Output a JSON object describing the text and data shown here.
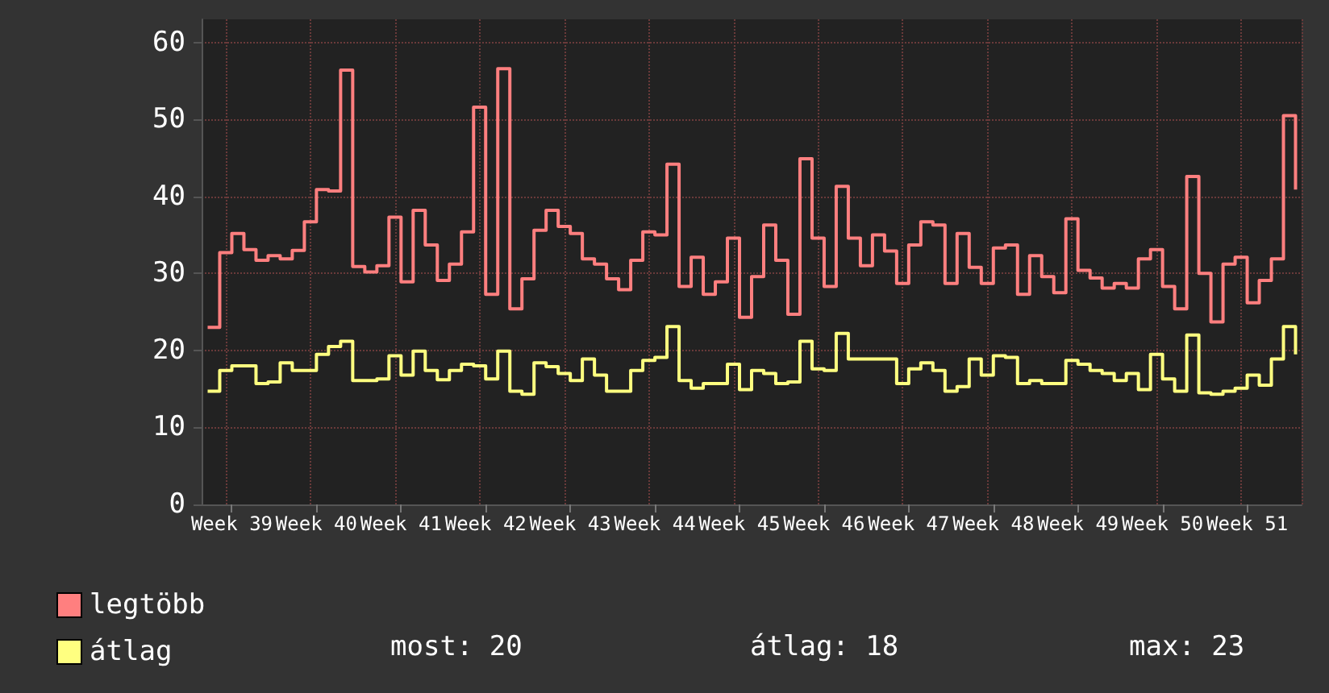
{
  "chart_data": {
    "type": "step",
    "ylim": [
      0,
      63
    ],
    "categories": [
      null,
      null,
      "Week 39",
      null,
      null,
      null,
      null,
      null,
      null,
      "Week 40",
      null,
      null,
      null,
      null,
      null,
      null,
      "Week 41",
      null,
      null,
      null,
      null,
      null,
      null,
      "Week 42",
      null,
      null,
      null,
      null,
      null,
      null,
      "Week 43",
      null,
      null,
      null,
      null,
      null,
      null,
      "Week 44",
      null,
      null,
      null,
      null,
      null,
      null,
      "Week 45",
      null,
      null,
      null,
      null,
      null,
      null,
      "Week 46",
      null,
      null,
      null,
      null,
      null,
      null,
      "Week 47",
      null,
      null,
      null,
      null,
      null,
      null,
      "Week 48",
      null,
      null,
      null,
      null,
      null,
      null,
      "Week 49",
      null,
      null,
      null,
      null,
      null,
      null,
      "Week 50",
      null,
      null,
      null,
      null,
      null,
      null,
      "Week 51",
      null,
      null,
      null,
      null
    ],
    "yticks": [
      0,
      10,
      20,
      30,
      40,
      50,
      60
    ],
    "series": [
      {
        "name": "legtöbb",
        "color": "#ff7f7f",
        "values": [
          23,
          32.7,
          35.2,
          33.1,
          31.7,
          32.3,
          31.9,
          33,
          36.7,
          40.9,
          40.7,
          56.4,
          30.9,
          30.2,
          31,
          37.3,
          28.9,
          38.2,
          33.7,
          29.1,
          31.2,
          35.4,
          51.6,
          27.3,
          56.6,
          25.4,
          29.3,
          35.6,
          38.2,
          36.1,
          35.2,
          31.9,
          31.2,
          29.3,
          27.9,
          31.7,
          35.4,
          35,
          44.2,
          28.3,
          32.1,
          27.3,
          28.9,
          34.6,
          24.3,
          29.6,
          36.3,
          31.7,
          24.7,
          44.9,
          34.6,
          28.3,
          41.3,
          34.6,
          31,
          35,
          32.9,
          28.7,
          33.7,
          36.7,
          36.3,
          28.7,
          35.2,
          30.8,
          28.7,
          33.3,
          33.7,
          27.3,
          32.3,
          29.6,
          27.5,
          37.1,
          30.4,
          29.4,
          28.1,
          28.7,
          28.1,
          31.9,
          33.1,
          28.3,
          25.4,
          42.6,
          30,
          23.7,
          31.2,
          32.1,
          26.2,
          29.1,
          31.9,
          50.5,
          40.9
        ]
      },
      {
        "name": "átlag",
        "color": "#ffff80",
        "values": [
          14.7,
          17.4,
          18,
          18,
          15.7,
          15.9,
          18.4,
          17.4,
          17.4,
          19.5,
          20.5,
          21.2,
          16.1,
          16.1,
          16.3,
          19.3,
          16.8,
          19.9,
          17.4,
          16.2,
          17.4,
          18.2,
          18,
          16.3,
          19.9,
          14.7,
          14.3,
          18.4,
          17.9,
          17,
          16.1,
          18.9,
          16.8,
          14.7,
          14.7,
          17.4,
          18.7,
          19.1,
          23.1,
          16.1,
          15.1,
          15.7,
          15.7,
          18.2,
          14.9,
          17.4,
          17,
          15.7,
          15.9,
          21.2,
          17.6,
          17.4,
          22.2,
          18.9,
          18.9,
          18.9,
          18.9,
          15.7,
          17.6,
          18.4,
          17.4,
          14.7,
          15.3,
          18.9,
          16.8,
          19.3,
          19.1,
          15.7,
          16.1,
          15.7,
          15.7,
          18.7,
          18.2,
          17.4,
          17,
          16.1,
          17,
          14.9,
          19.5,
          16.3,
          14.7,
          22,
          14.5,
          14.3,
          14.7,
          15.1,
          16.8,
          15.5,
          18.9,
          23.1,
          19.5
        ]
      }
    ],
    "annotations": [
      "most: 20",
      "átlag: 18",
      "max: 23"
    ],
    "grid": true,
    "legend": "bottom left",
    "marker": "none"
  }
}
